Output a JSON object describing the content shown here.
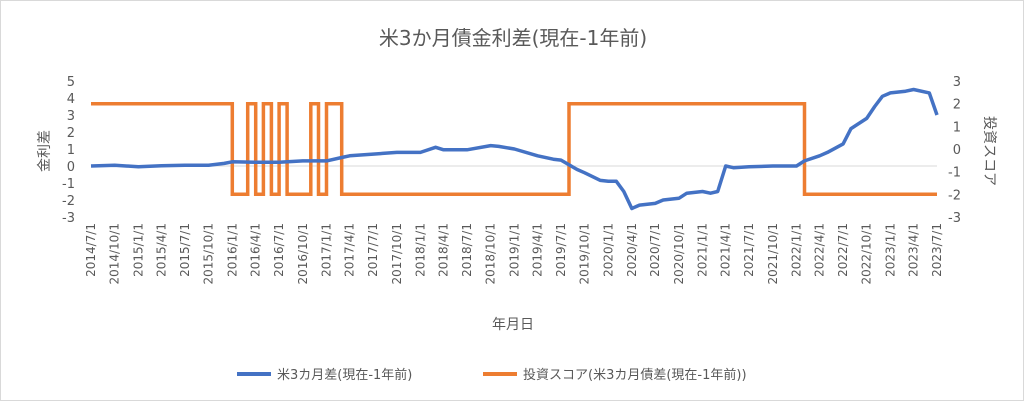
{
  "chart_data": {
    "type": "line",
    "title": "米3か月債金利差(現在-1年前)",
    "xlabel": "年月日",
    "ylabel_left": "金利差",
    "ylabel_right": "投資スコア",
    "ylim_left": [
      -3,
      5
    ],
    "ylim_right": [
      -3,
      3
    ],
    "yticks_left": [
      "5",
      "4",
      "3",
      "2",
      "1",
      "0",
      "-1",
      "-2",
      "-3"
    ],
    "yticks_right": [
      "3",
      "2",
      "1",
      "0",
      "-1",
      "-2",
      "-3"
    ],
    "x_tick_labels": [
      "2014/7/1",
      "2014/10/1",
      "2015/1/1",
      "2015/4/1",
      "2015/7/1",
      "2015/10/1",
      "2016/1/1",
      "2016/4/1",
      "2016/7/1",
      "2016/10/1",
      "2017/1/1",
      "2017/4/1",
      "2017/7/1",
      "2017/10/1",
      "2018/1/1",
      "2018/4/1",
      "2018/7/1",
      "2018/10/1",
      "2019/1/1",
      "2019/4/1",
      "2019/7/1",
      "2019/10/1",
      "2020/1/1",
      "2020/4/1",
      "2020/7/1",
      "2020/10/1",
      "2021/1/1",
      "2021/4/1",
      "2021/7/1",
      "2021/10/1",
      "2022/1/1",
      "2022/4/1",
      "2022/7/1",
      "2022/10/1",
      "2023/1/1",
      "2023/4/1",
      "2023/7/1"
    ],
    "legend_position": "bottom",
    "series": [
      {
        "name": "米3カ月差(現在-1年前)",
        "axis": "left",
        "color": "#4472c4",
        "x": [
          "2014/7/1",
          "2014/10/1",
          "2015/1/1",
          "2015/4/1",
          "2015/7/1",
          "2015/10/1",
          "2015/12/1",
          "2016/1/1",
          "2016/4/1",
          "2016/7/1",
          "2016/10/1",
          "2017/1/1",
          "2017/3/1",
          "2017/4/1",
          "2017/7/1",
          "2017/10/1",
          "2018/1/1",
          "2018/3/1",
          "2018/4/1",
          "2018/7/1",
          "2018/10/1",
          "2018/11/1",
          "2019/1/1",
          "2019/4/1",
          "2019/6/1",
          "2019/7/1",
          "2019/9/1",
          "2019/10/1",
          "2019/12/1",
          "2020/1/1",
          "2020/2/1",
          "2020/3/1",
          "2020/4/1",
          "2020/5/1",
          "2020/7/1",
          "2020/8/1",
          "2020/10/1",
          "2020/11/1",
          "2021/1/1",
          "2021/2/1",
          "2021/3/1",
          "2021/4/1",
          "2021/5/1",
          "2021/7/1",
          "2021/10/1",
          "2022/1/1",
          "2022/2/1",
          "2022/4/1",
          "2022/5/1",
          "2022/7/1",
          "2022/8/1",
          "2022/10/1",
          "2022/11/1",
          "2022/12/1",
          "2023/1/1",
          "2023/3/1",
          "2023/4/1",
          "2023/6/1",
          "2023/7/1"
        ],
        "values": [
          0,
          0.05,
          -0.05,
          0.02,
          0.05,
          0.05,
          0.15,
          0.25,
          0.22,
          0.22,
          0.3,
          0.3,
          0.5,
          0.6,
          0.7,
          0.8,
          0.8,
          1.1,
          0.95,
          0.95,
          1.2,
          1.15,
          1.0,
          0.6,
          0.4,
          0.35,
          -0.2,
          -0.4,
          -0.85,
          -0.9,
          -0.9,
          -1.5,
          -2.5,
          -2.3,
          -2.2,
          -2.0,
          -1.9,
          -1.6,
          -1.5,
          -1.6,
          -1.5,
          0,
          -0.1,
          -0.05,
          0,
          0,
          0.3,
          0.6,
          0.8,
          1.3,
          2.2,
          2.8,
          3.5,
          4.1,
          4.3,
          4.4,
          4.5,
          4.3,
          3.0
        ]
      },
      {
        "name": "投資スコア(米3カ月債差(現在-1年前))",
        "axis": "right",
        "color": "#ed7d31",
        "values_note": "step series, values 2 or -2",
        "x": [
          "2014/7/1",
          "2016/1/1",
          "2016/2/1",
          "2016/3/1",
          "2016/4/1",
          "2016/5/1",
          "2016/6/1",
          "2016/7/1",
          "2016/8/1",
          "2016/9/1",
          "2016/11/1",
          "2016/12/1",
          "2017/1/1",
          "2017/2/1",
          "2017/3/1",
          "2019/7/1",
          "2019/8/1",
          "2022/1/1",
          "2022/2/1",
          "2023/7/1"
        ],
        "values": [
          2,
          -2,
          -2,
          2,
          -2,
          2,
          -2,
          2,
          -2,
          -2,
          2,
          -2,
          2,
          2,
          -2,
          -2,
          2,
          2,
          -2,
          -2
        ]
      }
    ]
  }
}
